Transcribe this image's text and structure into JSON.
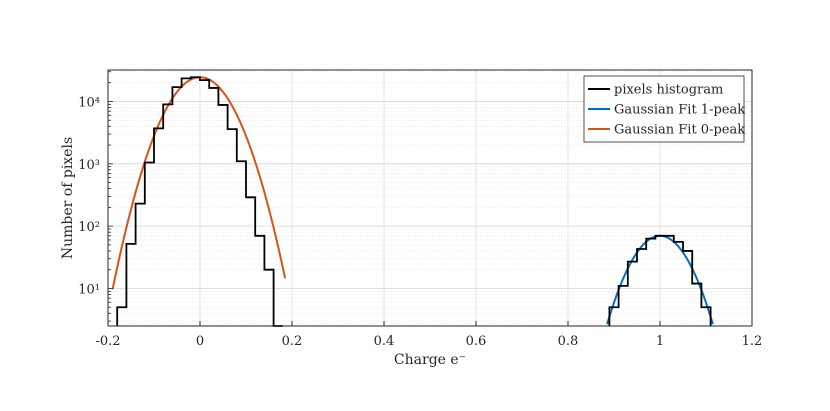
{
  "chart_data": {
    "type": "line",
    "xlabel": "Charge e⁻",
    "ylabel": "Number of pixels",
    "xlim": [
      -0.2,
      1.2
    ],
    "ylim": [
      2.5,
      32000
    ],
    "yscale": "log",
    "grid": true,
    "minor_grid": true,
    "legend_placement": "top-right",
    "x_ticks": [
      "-0.2",
      "0",
      "0.2",
      "0.4",
      "0.6",
      "0.8",
      "1",
      "1.2"
    ],
    "y_ticks": [
      "10¹",
      "10²",
      "10³",
      "10⁴"
    ],
    "series": [
      {
        "name": "pixels histogram",
        "color": "#000000",
        "style": "stairs",
        "bin_edges": [
          -0.18,
          -0.16,
          -0.14,
          -0.12,
          -0.1,
          -0.08,
          -0.06,
          -0.04,
          -0.02,
          0.0,
          0.02,
          0.04,
          0.06,
          0.08,
          0.1,
          0.12,
          0.14,
          0.16,
          0.18
        ],
        "counts": [
          5,
          52,
          230,
          1050,
          3700,
          9000,
          17000,
          23500,
          24500,
          22000,
          16500,
          8800,
          3600,
          1100,
          290,
          70,
          20,
          2.5
        ],
        "segment2_bin_edges": [
          0.89,
          0.91,
          0.93,
          0.95,
          0.97,
          0.99,
          1.01,
          1.03,
          1.05,
          1.07,
          1.09,
          1.11
        ],
        "segment2_counts": [
          5,
          11,
          27,
          43,
          63,
          70,
          70,
          56,
          40,
          12,
          5
        ]
      },
      {
        "name": "Gaussian Fit 1-peak",
        "color": "#0072BD",
        "style": "line",
        "model": {
          "amplitude": 70,
          "mean": 1.0,
          "sigma": 0.045,
          "x_range": [
            0.885,
            1.115
          ]
        }
      },
      {
        "name": "Gaussian Fit 0-peak",
        "color": "#D95319",
        "style": "line",
        "model": {
          "amplitude": 24500,
          "mean": 0.0,
          "sigma": 0.048,
          "x_range": [
            -0.19,
            0.185
          ]
        }
      }
    ]
  }
}
